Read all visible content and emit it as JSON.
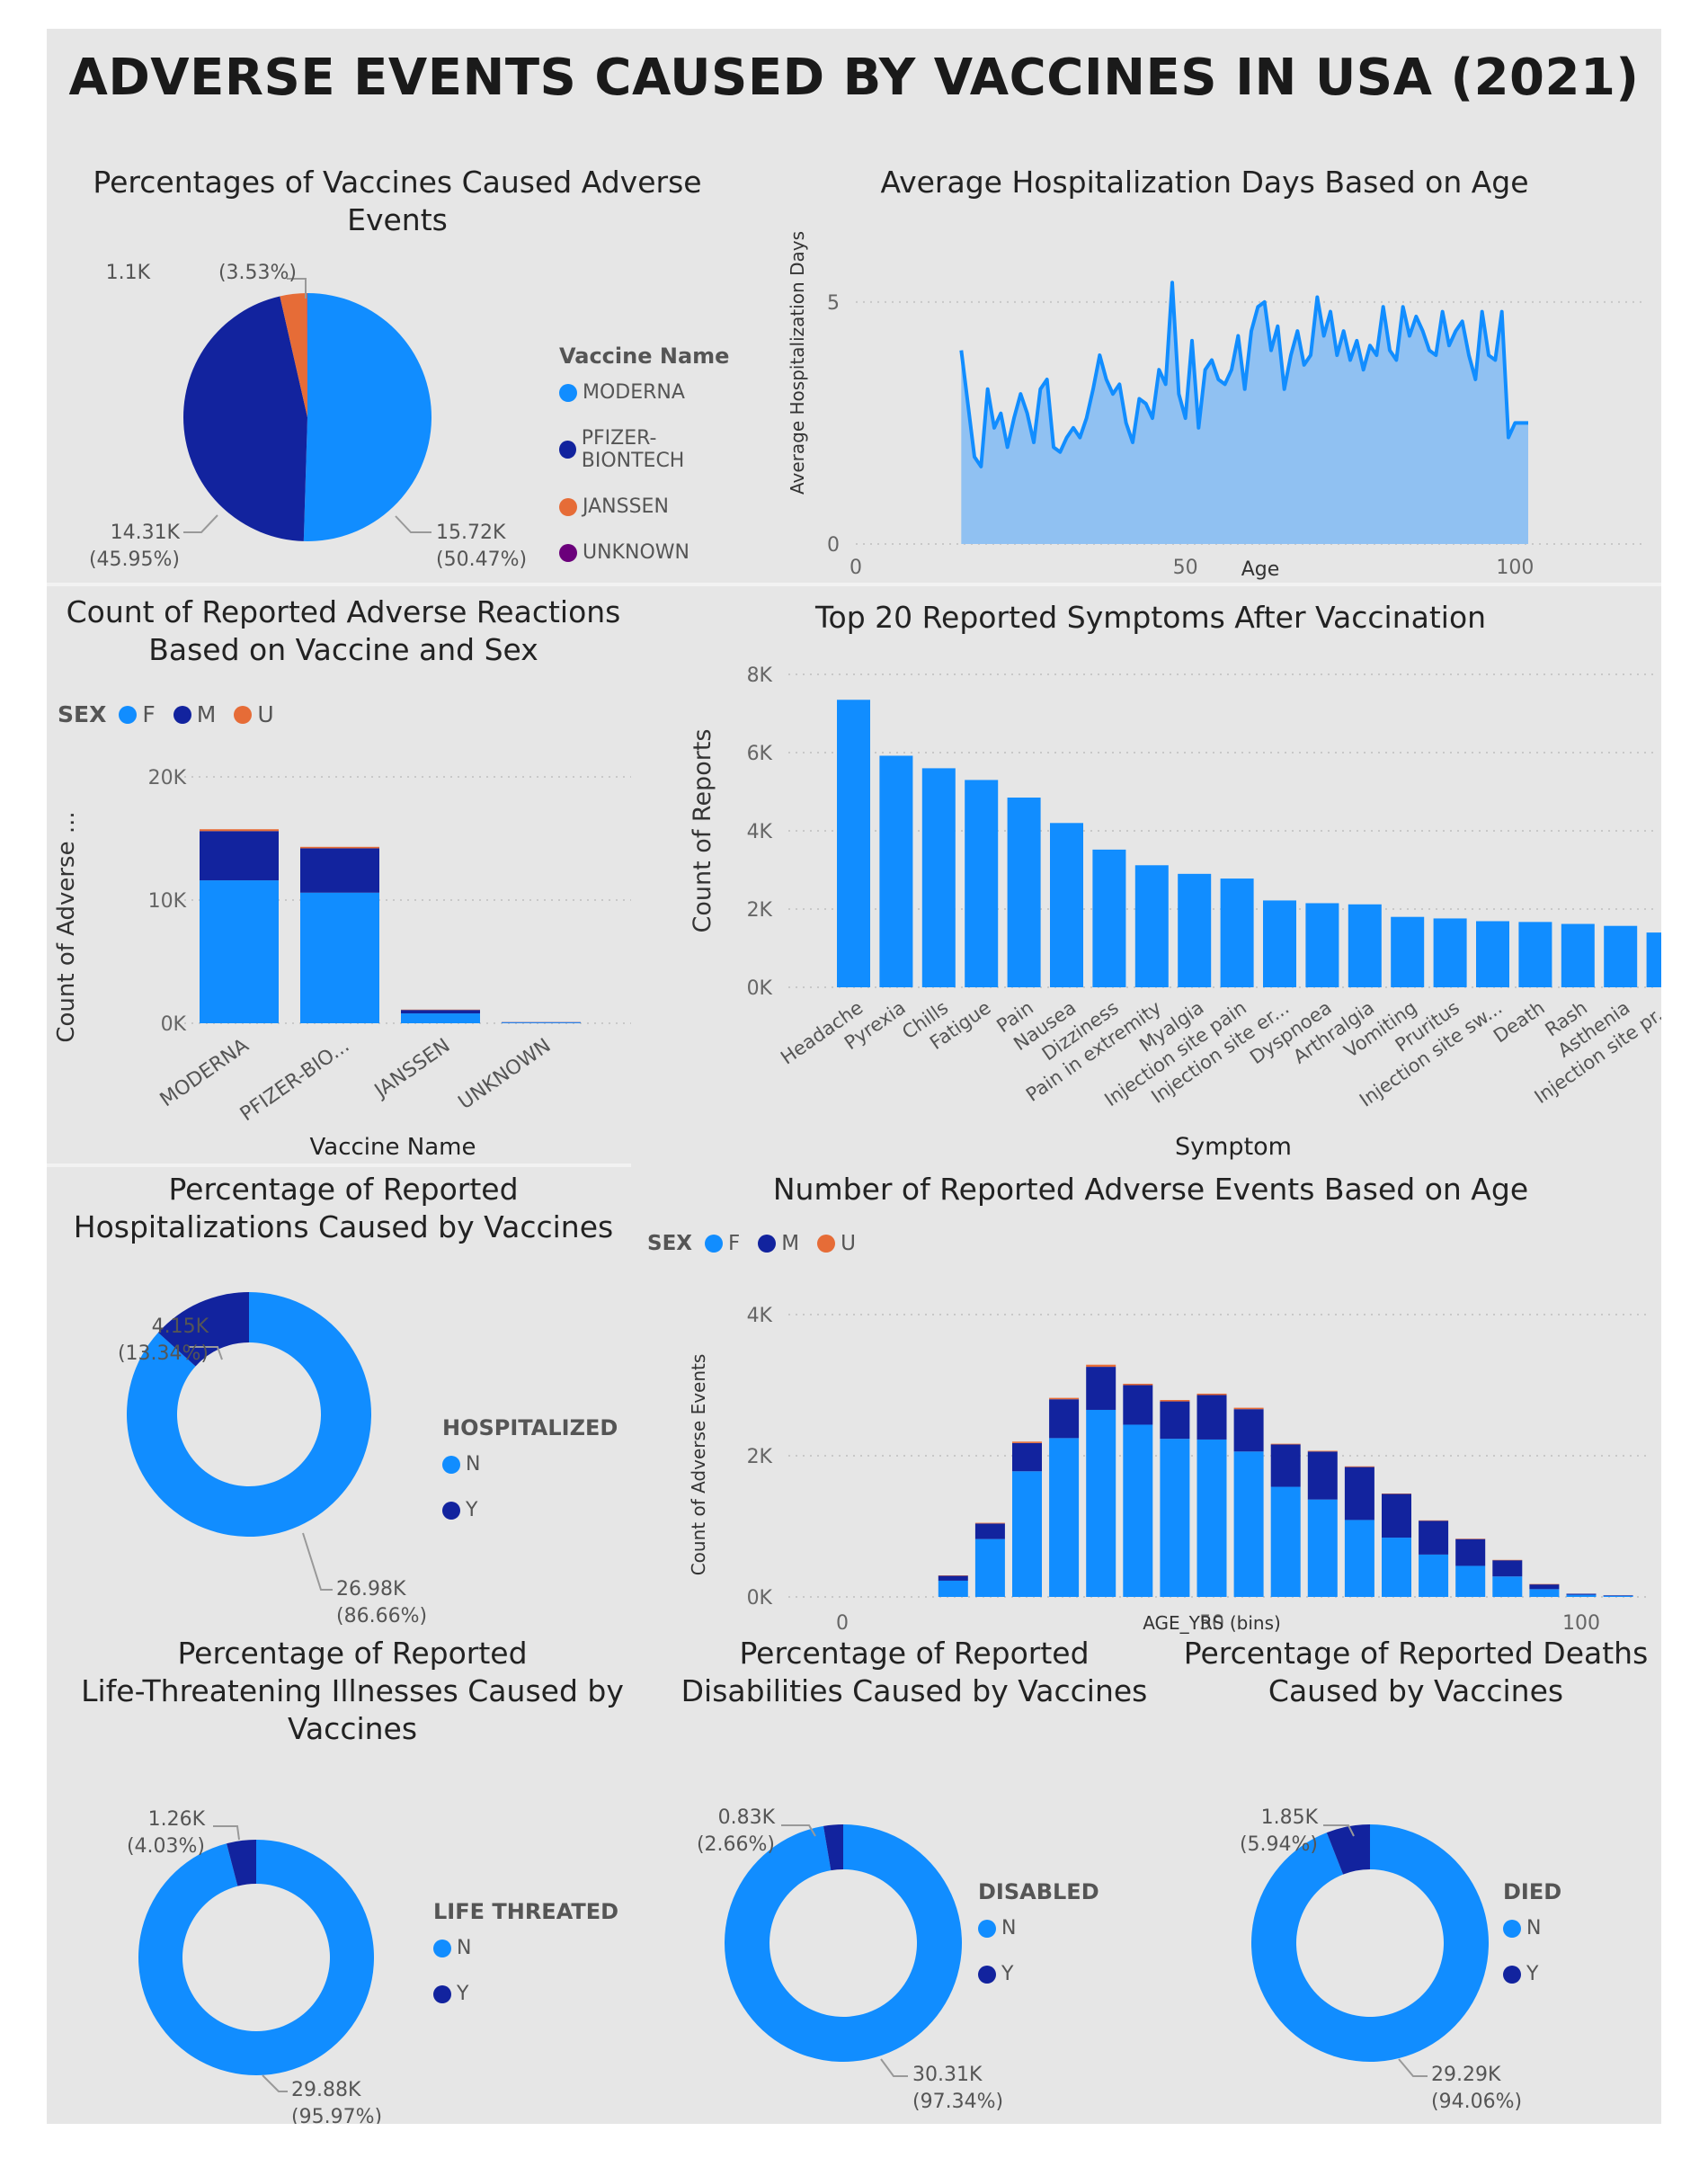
{
  "page": {
    "title": "ADVERSE EVENTS CAUSED BY VACCINES IN USA (2021)"
  },
  "colors": {
    "F": "#118dff",
    "M": "#12239e",
    "U": "#e66c37",
    "unknown": "#6b007b",
    "area": "#90c1f2"
  },
  "chart_data": [
    {
      "id": "vaccine-pie",
      "type": "pie",
      "title": "Percentages of Vaccines Caused Adverse Events",
      "legend_title": "Vaccine Name",
      "slices": [
        {
          "name": "MODERNA",
          "value": 15.72,
          "label": "15.72K",
          "pct": "(50.47%)",
          "color": "#118dff"
        },
        {
          "name": "PFIZER-BIONTECH",
          "value": 14.31,
          "label": "14.31K",
          "pct": "(45.95%)",
          "color": "#12239e"
        },
        {
          "name": "JANSSEN",
          "value": 1.1,
          "label": "1.1K",
          "pct": "(3.53%)",
          "color": "#e66c37"
        },
        {
          "name": "UNKNOWN",
          "value": 0.01,
          "label": "",
          "pct": "",
          "color": "#6b007b"
        }
      ]
    },
    {
      "id": "hosp-days-area",
      "type": "area",
      "title": "Average Hospitalization Days Based on Age",
      "xlabel": "Age",
      "ylabel": "Average Hospitalization Days",
      "xlim": [
        0,
        120
      ],
      "ylim": [
        0,
        6
      ],
      "xticks": [
        "0",
        "50",
        "100"
      ],
      "yticks": [
        "0",
        "5"
      ],
      "x": [
        16,
        17,
        18,
        19,
        20,
        21,
        22,
        23,
        24,
        25,
        26,
        27,
        28,
        29,
        30,
        31,
        32,
        33,
        34,
        35,
        36,
        37,
        38,
        39,
        40,
        41,
        42,
        43,
        44,
        45,
        46,
        47,
        48,
        49,
        50,
        51,
        52,
        53,
        54,
        55,
        56,
        57,
        58,
        59,
        60,
        61,
        62,
        63,
        64,
        65,
        66,
        67,
        68,
        69,
        70,
        71,
        72,
        73,
        74,
        75,
        76,
        77,
        78,
        79,
        80,
        81,
        82,
        83,
        84,
        85,
        86,
        87,
        88,
        89,
        90,
        91,
        92,
        93,
        94,
        95,
        96,
        97,
        98,
        99,
        100,
        101,
        102
      ],
      "y": [
        4.0,
        2.9,
        1.8,
        1.6,
        3.2,
        2.4,
        2.7,
        2.0,
        2.6,
        3.1,
        2.7,
        2.1,
        3.2,
        3.4,
        2.0,
        1.9,
        2.2,
        2.4,
        2.2,
        2.6,
        3.2,
        3.9,
        3.4,
        3.1,
        3.3,
        2.5,
        2.1,
        3.0,
        2.9,
        2.6,
        3.6,
        3.3,
        5.4,
        3.1,
        2.6,
        4.2,
        2.4,
        3.6,
        3.8,
        3.4,
        3.3,
        3.6,
        4.3,
        3.2,
        4.4,
        4.9,
        5.0,
        4.0,
        4.5,
        3.2,
        3.9,
        4.4,
        3.7,
        3.9,
        5.1,
        4.3,
        4.8,
        3.9,
        4.4,
        3.8,
        4.2,
        3.6,
        4.1,
        3.9,
        4.9,
        4.0,
        3.8,
        4.9,
        4.3,
        4.7,
        4.4,
        4.0,
        3.9,
        4.8,
        4.1,
        4.4,
        4.6,
        3.9,
        3.4,
        4.8,
        3.9,
        3.8,
        4.8,
        2.2,
        2.5,
        2.5,
        2.5
      ]
    },
    {
      "id": "sex-vaccine-bar",
      "type": "bar",
      "title": "Count of Reported Adverse Reactions Based on Vaccine and Sex",
      "legend_title": "SEX",
      "xlabel": "Vaccine Name",
      "ylabel": "Count of Adverse ...",
      "ylim": [
        0,
        20000
      ],
      "yticks": [
        "0K",
        "10K",
        "20K"
      ],
      "categories": [
        "MODERNA",
        "PFIZER-BIO...",
        "JANSSEN",
        "UNKNOWN"
      ],
      "series": [
        {
          "name": "F",
          "values": [
            11600,
            10600,
            800,
            60
          ]
        },
        {
          "name": "M",
          "values": [
            4000,
            3600,
            280,
            30
          ]
        },
        {
          "name": "U",
          "values": [
            150,
            120,
            30,
            5
          ]
        }
      ]
    },
    {
      "id": "symptoms-bar",
      "type": "bar",
      "title": "Top 20 Reported Symptoms After Vaccination",
      "xlabel": "Symptom",
      "ylabel": "Count of Reports",
      "ylim": [
        0,
        8000
      ],
      "yticks": [
        "0K",
        "2K",
        "4K",
        "6K",
        "8K"
      ],
      "categories": [
        "Headache",
        "Pyrexia",
        "Chills",
        "Fatigue",
        "Pain",
        "Nausea",
        "Dizziness",
        "Pain in extremity",
        "Myalgia",
        "Injection site pain",
        "Injection site er...",
        "Dyspnoea",
        "Arthralgia",
        "Vomiting",
        "Pruritus",
        "Injection site sw...",
        "Death",
        "Rash",
        "Asthenia",
        "Injection site pr..."
      ],
      "values": [
        7350,
        5920,
        5600,
        5300,
        4850,
        4200,
        3520,
        3120,
        2900,
        2780,
        2220,
        2150,
        2120,
        1800,
        1760,
        1690,
        1670,
        1620,
        1570,
        1400
      ]
    },
    {
      "id": "hosp-donut",
      "type": "pie",
      "title": "Percentage of Reported Hospitalizations Caused by Vaccines",
      "legend_title": "HOSPITALIZED",
      "slices": [
        {
          "name": "N",
          "value": 26.98,
          "label": "26.98K",
          "pct": "(86.66%)"
        },
        {
          "name": "Y",
          "value": 4.15,
          "label": "4.15K",
          "pct": "(13.34%)"
        }
      ]
    },
    {
      "id": "age-bar",
      "type": "bar",
      "title": "Number of Reported Adverse Events Based on Age",
      "legend_title": "SEX",
      "xlabel": "AGE_YRS (bins)",
      "ylabel": "Count of Adverse Events",
      "xlim": [
        0,
        120
      ],
      "ylim": [
        0,
        4000
      ],
      "xticks": [
        "0",
        "50",
        "100"
      ],
      "yticks": [
        "0K",
        "2K",
        "4K"
      ],
      "x": [
        15,
        20,
        25,
        30,
        35,
        40,
        45,
        50,
        55,
        60,
        65,
        70,
        75,
        80,
        85,
        90,
        95,
        100,
        105,
        115
      ],
      "series": [
        {
          "name": "F",
          "values": [
            230,
            820,
            1780,
            2250,
            2650,
            2440,
            2240,
            2230,
            2060,
            1560,
            1380,
            1090,
            840,
            600,
            440,
            290,
            110,
            30,
            15,
            8
          ]
        },
        {
          "name": "M",
          "values": [
            70,
            220,
            400,
            550,
            610,
            560,
            530,
            630,
            600,
            600,
            680,
            750,
            620,
            480,
            380,
            230,
            70,
            15,
            8,
            4
          ]
        },
        {
          "name": "U",
          "values": [
            5,
            10,
            20,
            20,
            30,
            20,
            20,
            20,
            20,
            10,
            10,
            10,
            5,
            5,
            5,
            5,
            2,
            0,
            0,
            0
          ]
        }
      ]
    },
    {
      "id": "life-donut",
      "type": "pie",
      "title": "Percentage of Reported Life-Threatening Illnesses Caused by Vaccines",
      "legend_title": "LIFE THREATED",
      "slices": [
        {
          "name": "N",
          "value": 29.88,
          "label": "29.88K",
          "pct": "(95.97%)"
        },
        {
          "name": "Y",
          "value": 1.26,
          "label": "1.26K",
          "pct": "(4.03%)"
        }
      ]
    },
    {
      "id": "disabled-donut",
      "type": "pie",
      "title": "Percentage of Reported Disabilities Caused by Vaccines",
      "legend_title": "DISABLED",
      "slices": [
        {
          "name": "N",
          "value": 30.31,
          "label": "30.31K",
          "pct": "(97.34%)"
        },
        {
          "name": "Y",
          "value": 0.83,
          "label": "0.83K",
          "pct": "(2.66%)"
        }
      ]
    },
    {
      "id": "died-donut",
      "type": "pie",
      "title": "Percentage of Reported Deaths Caused by Vaccines",
      "legend_title": "DIED",
      "slices": [
        {
          "name": "N",
          "value": 29.29,
          "label": "29.29K",
          "pct": "(94.06%)"
        },
        {
          "name": "Y",
          "value": 1.85,
          "label": "1.85K",
          "pct": "(5.94%)"
        }
      ]
    }
  ],
  "titles": {
    "pie1": [
      "Percentages of Vaccines Caused Adverse",
      "Events"
    ],
    "area": [
      "Average Hospitalization Days Based on Age"
    ],
    "sexbar": [
      "Count of Reported Adverse Reactions",
      "Based on Vaccine and Sex"
    ],
    "symptoms": [
      "Top 20 Reported Symptoms After Vaccination"
    ],
    "hosp": [
      "Percentage of Reported",
      "Hospitalizations Caused by Vaccines"
    ],
    "agebar": [
      "Number of Reported Adverse Events Based on Age"
    ],
    "life": [
      "Percentage of Reported",
      "Life-Threatening Illnesses Caused by",
      "Vaccines"
    ],
    "disabled": [
      "Percentage of Reported",
      "Disabilities Caused by Vaccines"
    ],
    "died": [
      "Percentage of Reported Deaths",
      "Caused by Vaccines"
    ]
  }
}
